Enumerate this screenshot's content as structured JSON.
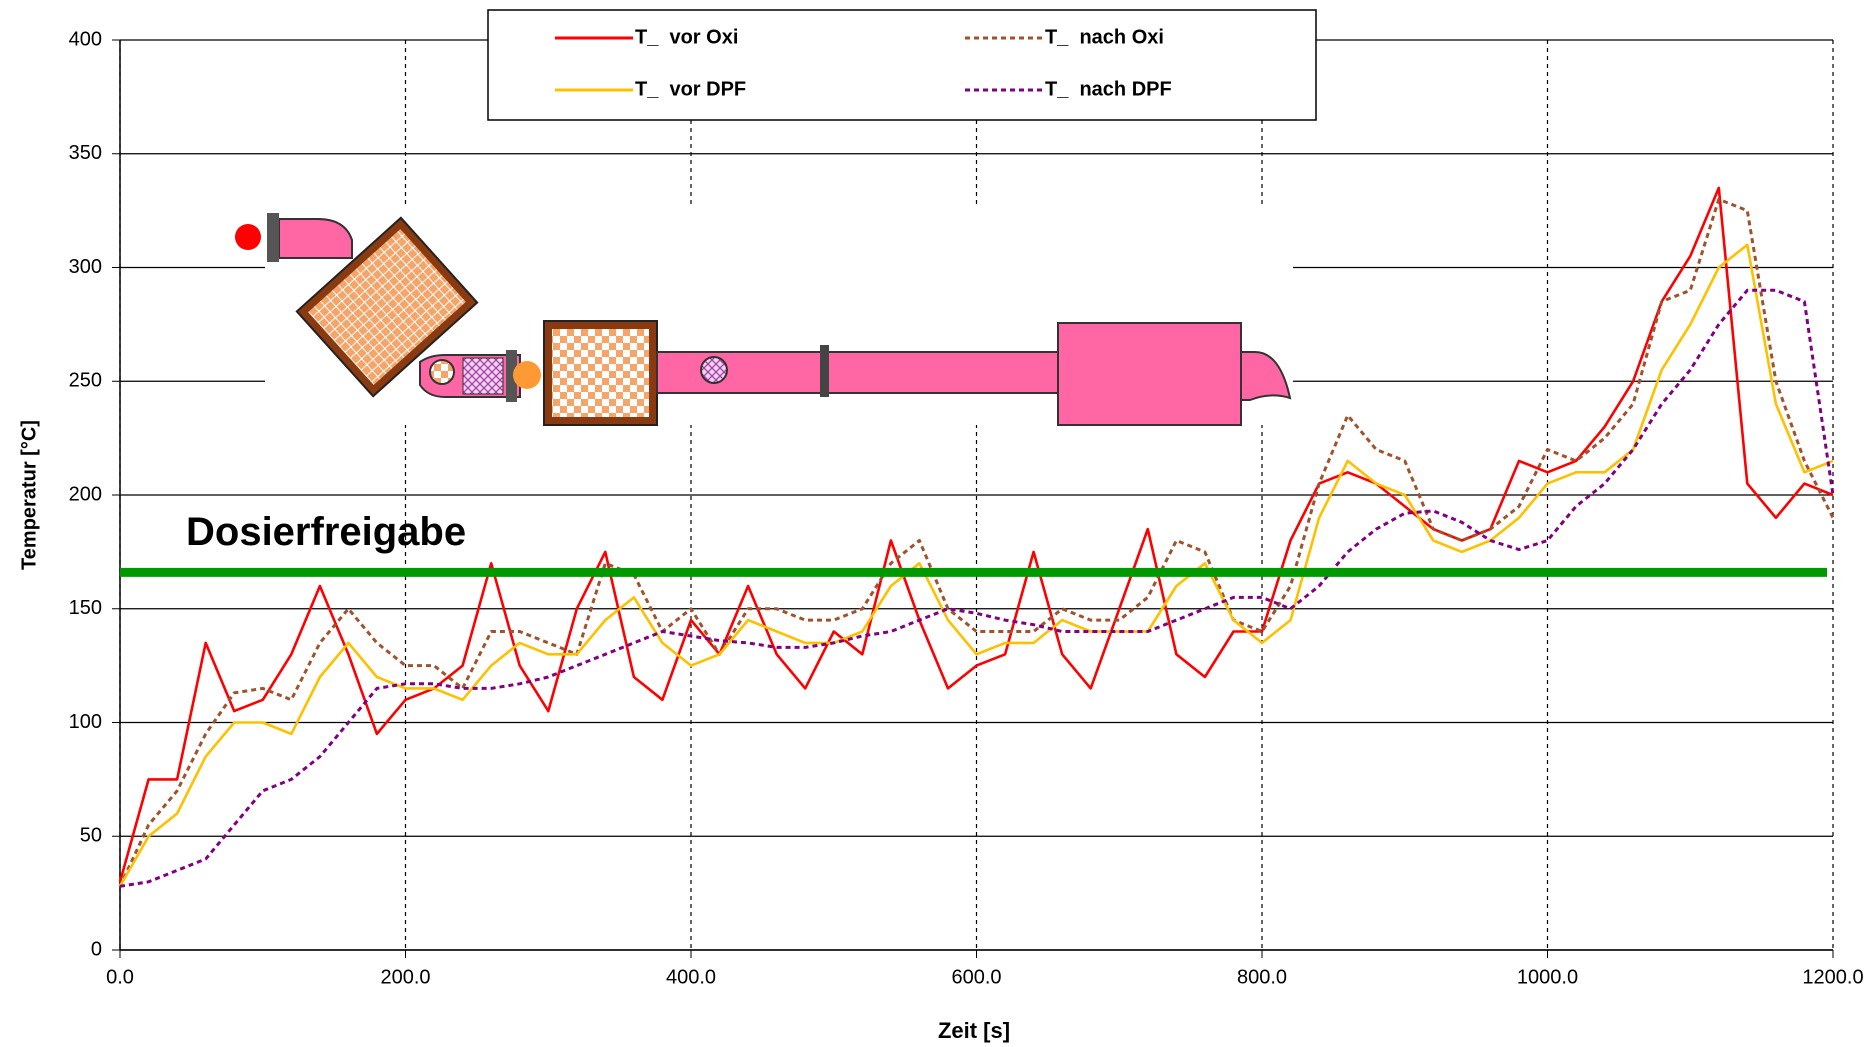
{
  "chart_data": {
    "type": "line",
    "x_label": "Zeit [s]",
    "y_label": "Temperatur [°C]",
    "xlim": [
      0,
      1200
    ],
    "ylim": [
      0,
      400
    ],
    "xticks": [
      {
        "value": 0,
        "label": "0.0"
      },
      {
        "value": 200,
        "label": "200.0"
      },
      {
        "value": 400,
        "label": "400.0"
      },
      {
        "value": 600,
        "label": "600.0"
      },
      {
        "value": 800,
        "label": "800.0"
      },
      {
        "value": 1000,
        "label": "1000.0"
      },
      {
        "value": 1200,
        "label": "1200.0"
      }
    ],
    "yticks": [
      0,
      50,
      100,
      150,
      200,
      250,
      300,
      350,
      400
    ],
    "grid": true,
    "legend": "top",
    "threshold": {
      "label": "Dosierfreigabe",
      "value": 166,
      "color": "#009900"
    },
    "x": [
      0,
      20,
      40,
      60,
      80,
      100,
      120,
      140,
      160,
      180,
      200,
      220,
      240,
      260,
      280,
      300,
      320,
      340,
      360,
      380,
      400,
      420,
      440,
      460,
      480,
      500,
      520,
      540,
      560,
      580,
      600,
      620,
      640,
      660,
      680,
      700,
      720,
      740,
      760,
      780,
      800,
      820,
      840,
      860,
      880,
      900,
      920,
      940,
      960,
      980,
      1000,
      1020,
      1040,
      1060,
      1080,
      1100,
      1120,
      1140,
      1160,
      1180,
      1200
    ],
    "series": [
      {
        "name": "T_  vor Oxi",
        "color": "#ff0000",
        "dashed": false,
        "values": [
          30,
          75,
          75,
          135,
          105,
          110,
          130,
          160,
          130,
          95,
          110,
          115,
          125,
          170,
          125,
          105,
          150,
          175,
          120,
          110,
          145,
          130,
          160,
          130,
          115,
          140,
          130,
          180,
          145,
          115,
          125,
          130,
          175,
          130,
          115,
          150,
          185,
          130,
          120,
          140,
          140,
          180,
          205,
          210,
          205,
          195,
          185,
          180,
          185,
          215,
          210,
          215,
          230,
          250,
          285,
          305,
          335,
          205,
          190,
          205,
          200
        ]
      },
      {
        "name": "T_  nach Oxi",
        "color": "#a0522d",
        "dashed": true,
        "values": [
          28,
          55,
          70,
          95,
          113,
          115,
          110,
          135,
          150,
          135,
          125,
          125,
          115,
          140,
          140,
          135,
          130,
          170,
          165,
          140,
          150,
          130,
          150,
          150,
          145,
          145,
          150,
          170,
          180,
          150,
          140,
          140,
          140,
          150,
          145,
          145,
          155,
          180,
          175,
          145,
          140,
          160,
          205,
          235,
          220,
          215,
          185,
          180,
          185,
          195,
          220,
          215,
          225,
          240,
          285,
          290,
          330,
          325,
          250,
          215,
          190
        ]
      },
      {
        "name": "T_  vor DPF",
        "color": "#ffc000",
        "dashed": false,
        "values": [
          28,
          50,
          60,
          85,
          100,
          100,
          95,
          120,
          135,
          120,
          115,
          115,
          110,
          125,
          135,
          130,
          130,
          145,
          155,
          135,
          125,
          130,
          145,
          140,
          135,
          135,
          140,
          160,
          170,
          145,
          130,
          135,
          135,
          145,
          140,
          140,
          140,
          160,
          170,
          145,
          135,
          145,
          190,
          215,
          205,
          200,
          180,
          175,
          180,
          190,
          205,
          210,
          210,
          220,
          255,
          275,
          300,
          310,
          240,
          210,
          215
        ]
      },
      {
        "name": "T_  nach DPF",
        "color": "#800080",
        "dashed": true,
        "values": [
          28,
          30,
          35,
          40,
          55,
          70,
          75,
          85,
          100,
          115,
          117,
          117,
          115,
          115,
          117,
          120,
          125,
          130,
          135,
          140,
          138,
          136,
          135,
          133,
          133,
          135,
          138,
          140,
          145,
          150,
          148,
          145,
          143,
          140,
          140,
          140,
          140,
          145,
          150,
          155,
          155,
          150,
          160,
          175,
          185,
          192,
          193,
          188,
          180,
          176,
          180,
          195,
          205,
          220,
          240,
          255,
          275,
          290,
          290,
          285,
          200
        ]
      }
    ]
  }
}
